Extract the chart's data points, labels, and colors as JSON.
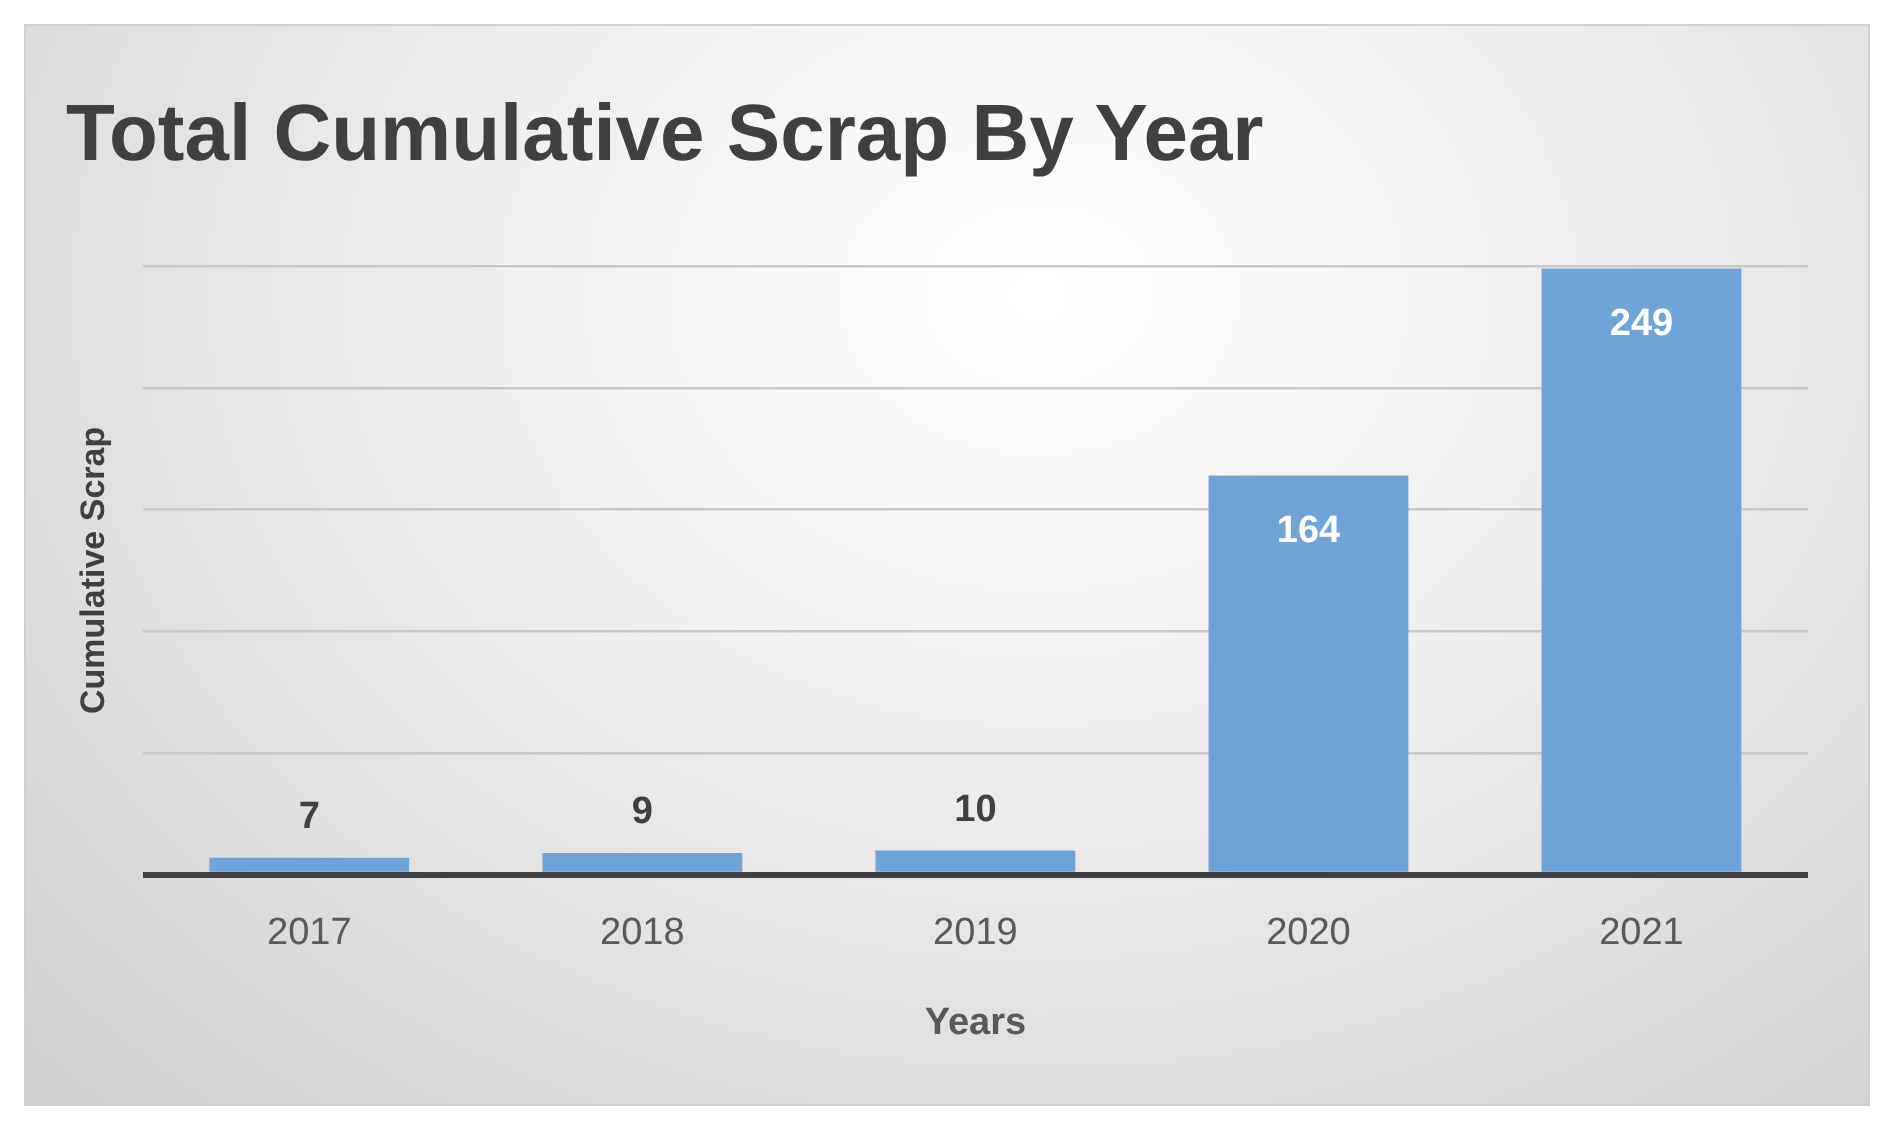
{
  "chart_data": {
    "type": "bar",
    "title": "Total Cumulative Scrap By Year",
    "xlabel": "Years",
    "ylabel": "Cumulative Scrap",
    "categories": [
      "2017",
      "2018",
      "2019",
      "2020",
      "2021"
    ],
    "values": [
      7,
      9,
      10,
      164,
      249
    ],
    "color": "#6fa4d9",
    "tick_labels": "x",
    "grid": "y",
    "legend": false,
    "data_labels": true
  }
}
